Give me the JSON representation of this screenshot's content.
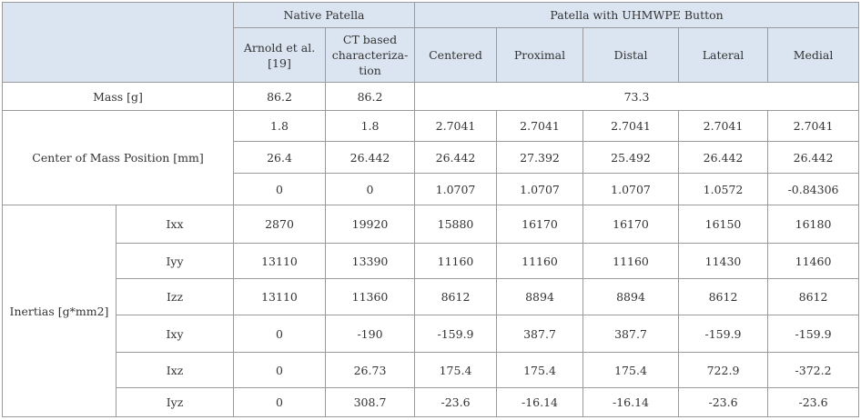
{
  "header": {
    "groups": [
      "Native Patella",
      "Patella with UHMWPE Button"
    ],
    "columns": [
      "Arnold et al. [19]",
      "CT based characteriza-tion",
      "Centered",
      "Proximal",
      "Distal",
      "Lateral",
      "Medial"
    ]
  },
  "mass": {
    "label": "Mass [g]",
    "native": [
      "86.2",
      "86.2"
    ],
    "uhmwpe": "73.3"
  },
  "center_of_mass": {
    "label": "Center of Mass Position [mm]",
    "rows": [
      [
        "1.8",
        "1.8",
        "2.7041",
        "2.7041",
        "2.7041",
        "2.7041",
        "2.7041"
      ],
      [
        "26.4",
        "26.442",
        "26.442",
        "27.392",
        "25.492",
        "26.442",
        "26.442"
      ],
      [
        "0",
        "0",
        "1.0707",
        "1.0707",
        "1.0707",
        "1.0572",
        "-0.84306"
      ]
    ]
  },
  "inertias": {
    "label": "Inertias [g*mm2]",
    "rows": [
      {
        "name": "Ixx",
        "values": [
          "2870",
          "19920",
          "15880",
          "16170",
          "16170",
          "16150",
          "16180"
        ]
      },
      {
        "name": "Iyy",
        "values": [
          "13110",
          "13390",
          "11160",
          "11160",
          "11160",
          "11430",
          "11460"
        ]
      },
      {
        "name": "Izz",
        "values": [
          "13110",
          "11360",
          "8612",
          "8894",
          "8894",
          "8612",
          "8612"
        ]
      },
      {
        "name": "Ixy",
        "values": [
          "0",
          "-190",
          "-159.9",
          "387.7",
          "387.7",
          "-159.9",
          "-159.9"
        ]
      },
      {
        "name": "Ixz",
        "values": [
          "0",
          "26.73",
          "175.4",
          "175.4",
          "175.4",
          "722.9",
          "-372.2"
        ]
      },
      {
        "name": "Iyz",
        "values": [
          "0",
          "308.7",
          "-23.6",
          "-16.14",
          "-16.14",
          "-23.6",
          "-23.6"
        ]
      }
    ]
  }
}
